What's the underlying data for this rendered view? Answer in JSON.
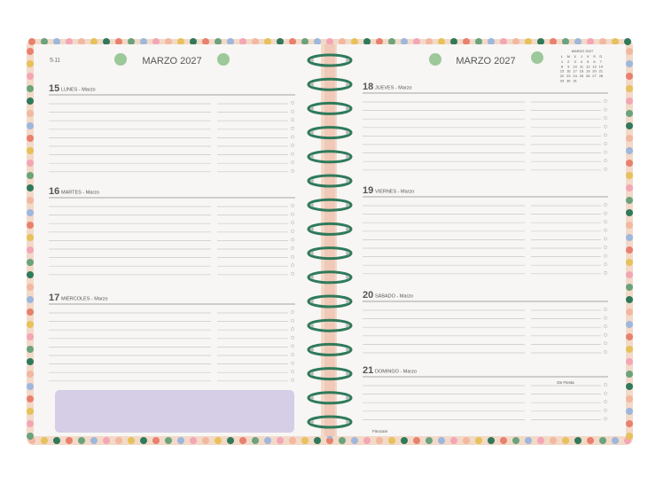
{
  "left_page": {
    "week": "S.11",
    "month": "MARZO 2027",
    "days": [
      {
        "number": "15",
        "label": "LUNES - Marzo"
      },
      {
        "number": "16",
        "label": "MARTES - Marzo"
      },
      {
        "number": "17",
        "label": "MIÉRCOLES - Marzo"
      }
    ]
  },
  "right_page": {
    "month": "MARZO 2027",
    "mini_calendar": {
      "title": "MARZO 2027",
      "weekdays": [
        "L",
        "M",
        "X",
        "J",
        "V",
        "S",
        "D"
      ],
      "weeks": [
        [
          "1",
          "2",
          "3",
          "4",
          "5",
          "6",
          "7"
        ],
        [
          "8",
          "9",
          "10",
          "11",
          "12",
          "13",
          "14"
        ],
        [
          "15",
          "16",
          "17",
          "18",
          "19",
          "20",
          "21"
        ],
        [
          "22",
          "23",
          "24",
          "25",
          "26",
          "27",
          "28"
        ],
        [
          "29",
          "30",
          "31"
        ]
      ]
    },
    "days": [
      {
        "number": "18",
        "label": "JUEVES - Marzo"
      },
      {
        "number": "19",
        "label": "VIERNES - Marzo"
      },
      {
        "number": "20",
        "label": "SÁBADO - Marzo"
      },
      {
        "number": "21",
        "label": "DOMINGO - Marzo"
      }
    ],
    "note": "De Fiesta",
    "brand": "Finocam"
  }
}
